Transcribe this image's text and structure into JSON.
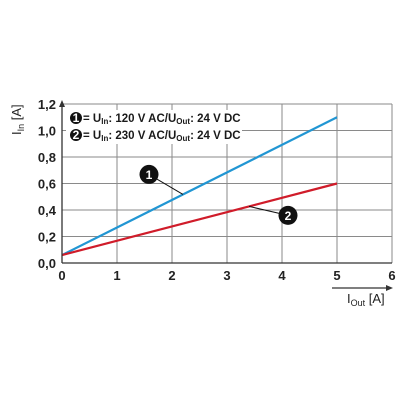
{
  "chart_data": {
    "type": "line",
    "xlabel": {
      "main": "I",
      "sub": "Out",
      "unit": " [A]"
    },
    "ylabel": {
      "main": "I",
      "sub": "In",
      "unit": " [A]"
    },
    "xlim": [
      0,
      6
    ],
    "ylim": [
      0,
      1.2
    ],
    "x_ticks": [
      0,
      1,
      2,
      3,
      4,
      5,
      6
    ],
    "x_tick_labels": [
      "0",
      "1",
      "2",
      "3",
      "4",
      "5",
      "6"
    ],
    "y_ticks": [
      0,
      0.2,
      0.4,
      0.6,
      0.8,
      1.0,
      1.2
    ],
    "y_tick_labels": [
      "0,0",
      "0,2",
      "0,4",
      "0,6",
      "0,8",
      "1,0",
      "1,2"
    ],
    "grid": true,
    "series": [
      {
        "marker": "1",
        "color": "#2196d3",
        "x": [
          0,
          5
        ],
        "y": [
          0.06,
          1.1
        ],
        "legend": {
          "pre": " = U",
          "sub1": "In",
          "mid": ": 120 V AC/U",
          "sub2": "Out",
          "post": ": 24 V DC"
        }
      },
      {
        "marker": "2",
        "color": "#d01c2a",
        "x": [
          0,
          5
        ],
        "y": [
          0.06,
          0.6
        ],
        "legend": {
          "pre": " = U",
          "sub1": "In",
          "mid": ": 230 V AC/U",
          "sub2": "Out",
          "post": ": 24 V DC"
        }
      }
    ],
    "callouts": [
      {
        "series": 0,
        "label": "1",
        "at_x": 2.2
      },
      {
        "series": 1,
        "label": "2",
        "at_x": 3.4
      }
    ]
  }
}
